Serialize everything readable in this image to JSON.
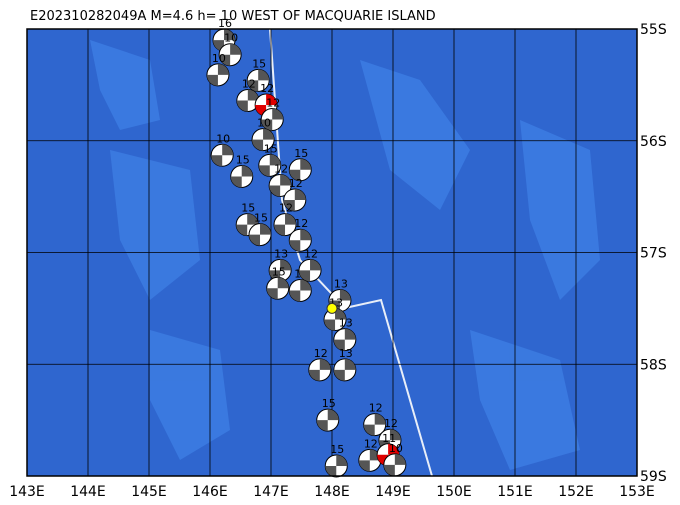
{
  "map": {
    "title": "E202310282049A M=4.6 h= 10 WEST OF MACQUARIE ISLAND",
    "xlim": [
      143,
      153
    ],
    "ylim": [
      55,
      59
    ],
    "xticks": [
      {
        "value": 143,
        "label": "143E"
      },
      {
        "value": 144,
        "label": "144E"
      },
      {
        "value": 145,
        "label": "145E"
      },
      {
        "value": 146,
        "label": "146E"
      },
      {
        "value": 147,
        "label": "147E"
      },
      {
        "value": 148,
        "label": "148E"
      },
      {
        "value": 149,
        "label": "149E"
      },
      {
        "value": 150,
        "label": "150E"
      },
      {
        "value": 151,
        "label": "151E"
      },
      {
        "value": 152,
        "label": "152E"
      },
      {
        "value": 153,
        "label": "153E"
      }
    ],
    "yticks": [
      {
        "value": 55,
        "label": "55S"
      },
      {
        "value": 56,
        "label": "56S"
      },
      {
        "value": 57,
        "label": "57S"
      },
      {
        "value": 58,
        "label": "58S"
      },
      {
        "value": 59,
        "label": "59S"
      }
    ],
    "epicenter": {
      "lon": 148.0,
      "lat": 57.5,
      "color": "#ffff00"
    },
    "events": [
      {
        "lon": 146.23,
        "lat": 55.1,
        "depth": 16,
        "color": "#555555"
      },
      {
        "lon": 146.33,
        "lat": 55.23,
        "depth": 10,
        "color": "#555555"
      },
      {
        "lon": 146.13,
        "lat": 55.41,
        "depth": 10,
        "color": "#555555"
      },
      {
        "lon": 146.79,
        "lat": 55.46,
        "depth": 15,
        "color": "#555555"
      },
      {
        "lon": 146.62,
        "lat": 55.64,
        "depth": 12,
        "color": "#555555"
      },
      {
        "lon": 146.92,
        "lat": 55.68,
        "depth": 12,
        "color": "#e00000"
      },
      {
        "lon": 147.02,
        "lat": 55.81,
        "depth": 12,
        "color": "#555555"
      },
      {
        "lon": 146.87,
        "lat": 55.99,
        "depth": 10,
        "color": "#555555"
      },
      {
        "lon": 146.2,
        "lat": 56.13,
        "depth": 10,
        "color": "#555555"
      },
      {
        "lon": 146.52,
        "lat": 56.32,
        "depth": 15,
        "color": "#555555"
      },
      {
        "lon": 146.98,
        "lat": 56.22,
        "depth": 15,
        "color": "#555555"
      },
      {
        "lon": 147.48,
        "lat": 56.26,
        "depth": 15,
        "color": "#555555"
      },
      {
        "lon": 147.15,
        "lat": 56.4,
        "depth": 12,
        "color": "#555555"
      },
      {
        "lon": 147.39,
        "lat": 56.53,
        "depth": 12,
        "color": "#555555"
      },
      {
        "lon": 146.61,
        "lat": 56.75,
        "depth": 15,
        "color": "#555555"
      },
      {
        "lon": 146.82,
        "lat": 56.84,
        "depth": 15,
        "color": "#555555"
      },
      {
        "lon": 147.23,
        "lat": 56.75,
        "depth": 12,
        "color": "#555555"
      },
      {
        "lon": 147.48,
        "lat": 56.89,
        "depth": 12,
        "color": "#555555"
      },
      {
        "lon": 147.15,
        "lat": 57.16,
        "depth": 13,
        "color": "#555555"
      },
      {
        "lon": 147.11,
        "lat": 57.32,
        "depth": 15,
        "color": "#555555"
      },
      {
        "lon": 147.48,
        "lat": 57.34,
        "depth": 12,
        "color": "#555555"
      },
      {
        "lon": 147.64,
        "lat": 57.16,
        "depth": 12,
        "color": "#555555"
      },
      {
        "lon": 148.13,
        "lat": 57.43,
        "depth": 13,
        "color": "#555555"
      },
      {
        "lon": 148.05,
        "lat": 57.6,
        "depth": 13,
        "color": "#555555"
      },
      {
        "lon": 148.21,
        "lat": 57.78,
        "depth": 13,
        "color": "#555555"
      },
      {
        "lon": 147.8,
        "lat": 58.05,
        "depth": 12,
        "color": "#555555"
      },
      {
        "lon": 148.21,
        "lat": 58.05,
        "depth": 13,
        "color": "#555555"
      },
      {
        "lon": 147.93,
        "lat": 58.5,
        "depth": 15,
        "color": "#555555"
      },
      {
        "lon": 148.07,
        "lat": 58.91,
        "depth": 15,
        "color": "#555555"
      },
      {
        "lon": 148.7,
        "lat": 58.54,
        "depth": 12,
        "color": "#555555"
      },
      {
        "lon": 148.95,
        "lat": 58.68,
        "depth": 12,
        "color": "#555555"
      },
      {
        "lon": 148.62,
        "lat": 58.86,
        "depth": 12,
        "color": "#555555"
      },
      {
        "lon": 148.92,
        "lat": 58.81,
        "depth": 11,
        "color": "#e00000"
      },
      {
        "lon": 149.03,
        "lat": 58.9,
        "depth": 10,
        "color": "#555555"
      }
    ]
  }
}
